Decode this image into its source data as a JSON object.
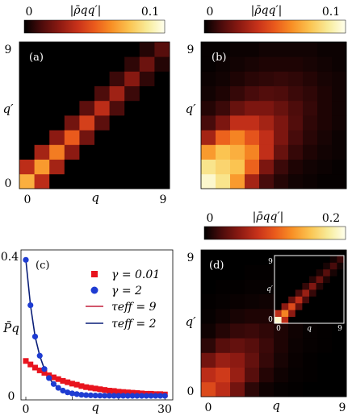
{
  "colorbars": [
    {
      "min_label": "0",
      "max_label": "0.1",
      "label": "|ρ̄qq′|"
    },
    {
      "min_label": "0",
      "max_label": "0.1",
      "label": "|ρ̄qq′|"
    },
    {
      "min_label": "0",
      "max_label": "0.2",
      "label": "|ρ̄qq′|"
    }
  ],
  "colormap": [
    "#000000",
    "#4a0b0b",
    "#8c1a12",
    "#c8321a",
    "#ea5a1c",
    "#f88f25",
    "#fbc451",
    "#f8ec9b",
    "#ffffee"
  ],
  "panel_a": {
    "tag": "(a)",
    "x_label": "q",
    "y_label": "q′",
    "x_ticks": [
      "0",
      "9"
    ],
    "y_ticks": [
      "0",
      "9"
    ],
    "n": 10,
    "vmax": 0.1,
    "matrix": [
      [
        0.07,
        0.035,
        0,
        0,
        0,
        0,
        0,
        0,
        0,
        0
      ],
      [
        0.035,
        0.065,
        0.03,
        0,
        0,
        0,
        0,
        0,
        0,
        0
      ],
      [
        0,
        0.03,
        0.058,
        0.025,
        0,
        0,
        0,
        0,
        0,
        0
      ],
      [
        0,
        0,
        0.025,
        0.05,
        0.02,
        0,
        0,
        0,
        0,
        0
      ],
      [
        0,
        0,
        0,
        0.02,
        0.042,
        0.016,
        0,
        0,
        0,
        0
      ],
      [
        0,
        0,
        0,
        0,
        0.016,
        0.035,
        0.013,
        0,
        0,
        0
      ],
      [
        0,
        0,
        0,
        0,
        0,
        0.013,
        0.029,
        0.01,
        0,
        0
      ],
      [
        0,
        0,
        0,
        0,
        0,
        0,
        0.01,
        0.024,
        0.008,
        0
      ],
      [
        0,
        0,
        0,
        0,
        0,
        0,
        0,
        0.008,
        0.019,
        0.006
      ],
      [
        0,
        0,
        0,
        0,
        0,
        0,
        0,
        0,
        0.006,
        0.015
      ]
    ]
  },
  "panel_b": {
    "tag": "(b)",
    "x_label": "q",
    "y_label": "q′",
    "x_ticks": [
      "0",
      "9"
    ],
    "y_ticks": [
      "0",
      "9"
    ],
    "n": 10,
    "vmax": 0.1,
    "matrix": [
      [
        0.095,
        0.085,
        0.065,
        0.03,
        0.012,
        0.006,
        0.003,
        0.002,
        0.001,
        0.001
      ],
      [
        0.085,
        0.08,
        0.075,
        0.052,
        0.022,
        0.01,
        0.005,
        0.003,
        0.002,
        0.001
      ],
      [
        0.065,
        0.075,
        0.07,
        0.06,
        0.036,
        0.018,
        0.009,
        0.005,
        0.003,
        0.002
      ],
      [
        0.03,
        0.052,
        0.06,
        0.048,
        0.036,
        0.022,
        0.012,
        0.007,
        0.004,
        0.002
      ],
      [
        0.012,
        0.022,
        0.036,
        0.036,
        0.03,
        0.022,
        0.014,
        0.008,
        0.005,
        0.003
      ],
      [
        0.006,
        0.01,
        0.018,
        0.022,
        0.022,
        0.018,
        0.013,
        0.009,
        0.005,
        0.003
      ],
      [
        0.003,
        0.005,
        0.009,
        0.012,
        0.014,
        0.013,
        0.01,
        0.008,
        0.005,
        0.003
      ],
      [
        0.002,
        0.003,
        0.005,
        0.007,
        0.008,
        0.009,
        0.008,
        0.006,
        0.004,
        0.003
      ],
      [
        0.001,
        0.002,
        0.003,
        0.004,
        0.005,
        0.005,
        0.005,
        0.004,
        0.003,
        0.002
      ],
      [
        0.001,
        0.001,
        0.002,
        0.002,
        0.003,
        0.003,
        0.003,
        0.003,
        0.002,
        0.002
      ]
    ]
  },
  "panel_c": {
    "tag": "(c)",
    "x_label": "q",
    "y_label": "P̄q",
    "x_ticks": [
      "0",
      "10",
      "20",
      "30"
    ],
    "y_ticks": [
      "0",
      "0.4"
    ],
    "legend": [
      {
        "label": "γ = 0.01",
        "kind": "square",
        "color": "#e8141e"
      },
      {
        "label": "γ = 2",
        "kind": "circle",
        "color": "#1e3cd2"
      },
      {
        "label": "τeff = 9",
        "kind": "line",
        "color": "#c41e3a"
      },
      {
        "label": "τeff = 2",
        "kind": "line",
        "color": "#0a1e78"
      }
    ]
  },
  "panel_d": {
    "tag": "(d)",
    "x_label": "q",
    "y_label": "q′",
    "x_ticks": [
      "0",
      "9"
    ],
    "y_ticks": [
      "0",
      "9"
    ],
    "n": 10,
    "vmax": 0.2,
    "matrix": [
      [
        0.09,
        0.07,
        0.04,
        0.015,
        0.005,
        0.002,
        0.001,
        0,
        0,
        0
      ],
      [
        0.07,
        0.08,
        0.055,
        0.03,
        0.012,
        0.005,
        0.002,
        0.001,
        0,
        0
      ],
      [
        0.04,
        0.055,
        0.05,
        0.035,
        0.018,
        0.008,
        0.003,
        0.001,
        0,
        0
      ],
      [
        0.015,
        0.03,
        0.035,
        0.03,
        0.02,
        0.01,
        0.004,
        0.002,
        0.001,
        0
      ],
      [
        0.005,
        0.012,
        0.018,
        0.02,
        0.016,
        0.01,
        0.005,
        0.002,
        0.001,
        0
      ],
      [
        0.002,
        0.005,
        0.008,
        0.01,
        0.01,
        0.008,
        0.005,
        0.002,
        0.001,
        0
      ],
      [
        0.001,
        0.002,
        0.003,
        0.004,
        0.005,
        0.005,
        0.004,
        0.002,
        0.001,
        0
      ],
      [
        0,
        0.001,
        0.001,
        0.002,
        0.002,
        0.002,
        0.002,
        0.002,
        0.001,
        0
      ],
      [
        0,
        0,
        0,
        0.001,
        0.001,
        0.001,
        0.001,
        0.001,
        0.001,
        0
      ],
      [
        0,
        0,
        0,
        0,
        0,
        0,
        0,
        0,
        0,
        0
      ]
    ],
    "inset": {
      "x_label": "q",
      "y_label": "q′",
      "x_ticks": [
        "0",
        "9"
      ],
      "y_ticks": [
        "0",
        "9"
      ],
      "n": 10,
      "vmax": 0.2,
      "matrix": [
        [
          0.19,
          0.07,
          0,
          0,
          0,
          0,
          0,
          0,
          0,
          0
        ],
        [
          0.07,
          0.12,
          0.05,
          0,
          0,
          0,
          0,
          0,
          0,
          0
        ],
        [
          0,
          0.05,
          0.09,
          0.035,
          0,
          0,
          0,
          0,
          0,
          0
        ],
        [
          0,
          0,
          0.035,
          0.07,
          0.025,
          0,
          0,
          0,
          0,
          0
        ],
        [
          0,
          0,
          0,
          0.025,
          0.055,
          0.018,
          0,
          0,
          0,
          0
        ],
        [
          0,
          0,
          0,
          0,
          0.018,
          0.045,
          0.013,
          0,
          0,
          0
        ],
        [
          0,
          0,
          0,
          0,
          0,
          0.013,
          0.036,
          0.01,
          0,
          0
        ],
        [
          0,
          0,
          0,
          0,
          0,
          0,
          0.01,
          0.03,
          0.008,
          0
        ],
        [
          0,
          0,
          0,
          0,
          0,
          0,
          0,
          0.008,
          0.024,
          0.006
        ],
        [
          0,
          0,
          0,
          0,
          0,
          0,
          0,
          0,
          0.006,
          0.02
        ]
      ]
    }
  },
  "chart_data": {
    "type": "scatter",
    "title": "",
    "xlabel": "q",
    "ylabel": "P̄q",
    "xlim": [
      0,
      31
    ],
    "ylim": [
      0,
      0.4
    ],
    "x": [
      0,
      1,
      2,
      3,
      4,
      5,
      6,
      7,
      8,
      9,
      10,
      11,
      12,
      13,
      14,
      15,
      16,
      17,
      18,
      19,
      20,
      21,
      22,
      23,
      24,
      25,
      26,
      27,
      28,
      29,
      30
    ],
    "series": [
      {
        "name": "γ = 0.01",
        "marker": "square",
        "values": [
          0.1,
          0.09,
          0.081,
          0.073,
          0.066,
          0.059,
          0.053,
          0.048,
          0.043,
          0.039,
          0.035,
          0.032,
          0.028,
          0.025,
          0.023,
          0.021,
          0.019,
          0.017,
          0.015,
          0.014,
          0.012,
          0.011,
          0.01,
          0.009,
          0.008,
          0.007,
          0.006,
          0.006,
          0.005,
          0.005,
          0.004
        ]
      },
      {
        "name": "γ = 2",
        "marker": "circle",
        "values": [
          0.39,
          0.26,
          0.17,
          0.115,
          0.077,
          0.051,
          0.034,
          0.023,
          0.015,
          0.01,
          0.007,
          0.005,
          0.003,
          0.002,
          0.0014,
          0.0009,
          0.0006,
          0.0004,
          0.0003,
          0.0002,
          0.0001,
          0.0001,
          0,
          0,
          0,
          0,
          0,
          0,
          0,
          0,
          0
        ]
      },
      {
        "name": "τeff = 9",
        "marker": "line",
        "values": [
          0.1,
          0.09,
          0.081,
          0.073,
          0.066,
          0.059,
          0.053,
          0.048,
          0.043,
          0.039,
          0.035,
          0.032,
          0.028,
          0.025,
          0.023,
          0.021,
          0.019,
          0.017,
          0.015,
          0.014,
          0.012,
          0.011,
          0.01,
          0.009,
          0.008,
          0.007,
          0.006,
          0.006,
          0.005,
          0.005,
          0.004
        ]
      },
      {
        "name": "τeff = 2",
        "marker": "line",
        "values": [
          0.39,
          0.26,
          0.17,
          0.115,
          0.077,
          0.051,
          0.034,
          0.023,
          0.015,
          0.01,
          0.007,
          0.005,
          0.003,
          0.002,
          0.0014,
          0.0009,
          0.0006,
          0.0004,
          0.0003,
          0.0002,
          0.0001,
          0.0001,
          0,
          0,
          0,
          0,
          0,
          0,
          0,
          0,
          0
        ]
      }
    ]
  }
}
